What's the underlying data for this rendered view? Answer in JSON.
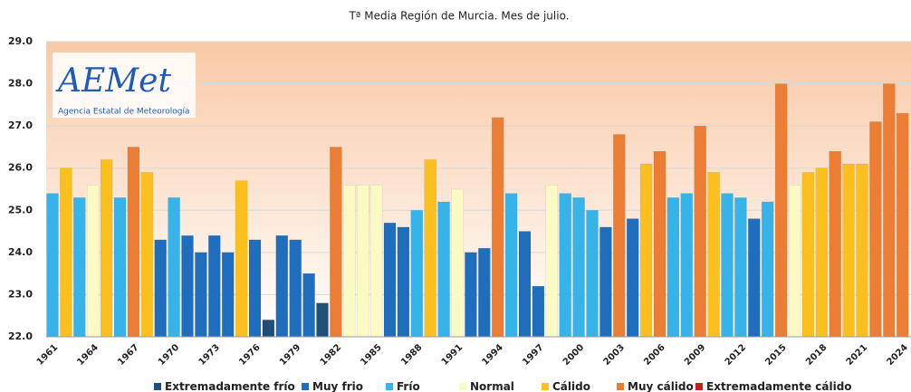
{
  "chart_data": {
    "type": "bar",
    "title": "Tª Media Región de Murcia. Mes de julio.",
    "logo": {
      "name": "AEMet",
      "subtitle": "Agencia Estatal de Meteorología"
    },
    "categories": [
      "1961",
      null,
      null,
      "1964",
      null,
      null,
      "1967",
      null,
      null,
      "1970",
      null,
      null,
      "1973",
      null,
      null,
      "1976",
      null,
      null,
      "1979",
      null,
      null,
      "1982",
      null,
      null,
      "1985",
      null,
      null,
      "1988",
      null,
      null,
      "1991",
      null,
      null,
      "1994",
      null,
      null,
      "1997",
      null,
      null,
      "2000",
      null,
      null,
      "2003",
      null,
      null,
      "2006",
      null,
      null,
      "2009",
      null,
      null,
      "2012",
      null,
      null,
      "2015",
      null,
      null,
      "2018",
      null,
      null,
      "2021",
      null,
      null,
      "2024"
    ],
    "values": [
      25.4,
      26.0,
      25.3,
      25.6,
      26.2,
      25.3,
      26.5,
      25.9,
      24.3,
      25.3,
      24.4,
      24.0,
      24.4,
      24.0,
      25.7,
      24.3,
      22.4,
      24.4,
      24.3,
      23.5,
      22.8,
      26.5,
      25.6,
      25.6,
      25.6,
      24.7,
      24.6,
      25.0,
      26.2,
      25.2,
      25.5,
      24.0,
      24.1,
      27.2,
      25.4,
      24.5,
      23.2,
      25.6,
      25.4,
      25.3,
      25.0,
      24.6,
      26.8,
      24.8,
      26.1,
      26.4,
      25.3,
      25.4,
      27.0,
      25.9,
      25.4,
      25.3,
      24.8,
      25.2,
      28.0,
      25.6,
      25.9,
      26.0,
      26.4,
      26.1,
      26.1,
      27.1,
      28.0,
      27.3
    ],
    "colors": [
      "#36b4ea",
      "#fbbf1e",
      "#36b4ea",
      "#fbfac4",
      "#fbbf1e",
      "#36b4ea",
      "#ec7d34",
      "#fbbf1e",
      "#1f6dbd",
      "#36b4ea",
      "#1f6dbd",
      "#1f6dbd",
      "#1f6dbd",
      "#1f6dbd",
      "#fbbf1e",
      "#1f6dbd",
      "#1f4e79",
      "#1f6dbd",
      "#1f6dbd",
      "#1f6dbd",
      "#1f4e79",
      "#ec7d34",
      "#fbfac4",
      "#fbfac4",
      "#fbfac4",
      "#1f6dbd",
      "#1f6dbd",
      "#36b4ea",
      "#fbbf1e",
      "#36b4ea",
      "#fbfac4",
      "#1f6dbd",
      "#1f6dbd",
      "#ec7d34",
      "#36b4ea",
      "#1f6dbd",
      "#1f6dbd",
      "#fbfac4",
      "#36b4ea",
      "#36b4ea",
      "#36b4ea",
      "#1f6dbd",
      "#ec7d34",
      "#1f6dbd",
      "#fbbf1e",
      "#ec7d34",
      "#36b4ea",
      "#36b4ea",
      "#ec7d34",
      "#fbbf1e",
      "#36b4ea",
      "#36b4ea",
      "#1f6dbd",
      "#36b4ea",
      "#ec7d34",
      "#fbfac4",
      "#fbbf1e",
      "#fbbf1e",
      "#ec7d34",
      "#fbbf1e",
      "#fbbf1e",
      "#ec7d34",
      "#ec7d34",
      "#ec7d34"
    ],
    "legend": [
      {
        "name": "Extremadamente frío",
        "color": "#1f4e79"
      },
      {
        "name": "Muy frio",
        "color": "#1f6dbd"
      },
      {
        "name": "Frío",
        "color": "#36b4ea"
      },
      {
        "name": "Normal",
        "color": "#fbfac4"
      },
      {
        "name": "Cálido",
        "color": "#fbbf1e"
      },
      {
        "name": "Muy cálido",
        "color": "#ec7d34"
      },
      {
        "name": "Extremadamente cálido",
        "color": "#c81e1e"
      }
    ],
    "ylim": [
      22,
      29
    ],
    "yticks": [
      {
        "value": 22,
        "label": "22.0"
      },
      {
        "value": 23,
        "label": "23.0"
      },
      {
        "value": 24,
        "label": "24.0"
      },
      {
        "value": 25,
        "label": "25.0"
      },
      {
        "value": 26,
        "label": "26.0"
      },
      {
        "value": 27,
        "label": "27.0"
      },
      {
        "value": 28,
        "label": "28.0"
      },
      {
        "value": 29,
        "label": "29.0"
      }
    ],
    "grid": true
  }
}
